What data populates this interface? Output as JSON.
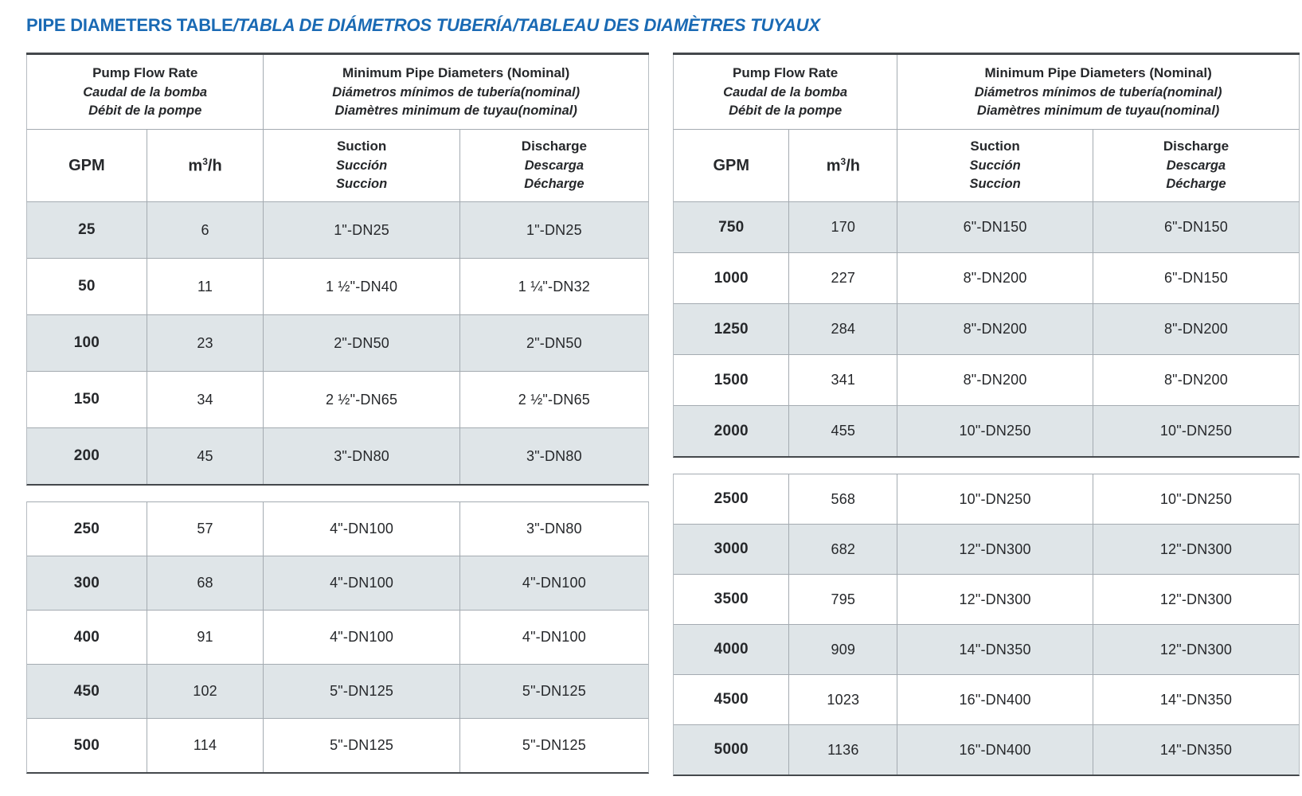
{
  "title": {
    "main": "PIPE DIAMETERS TABLE",
    "translations": "/TABLA DE DIÁMETROS TUBERÍA/TABLEAU DES DIAMÈTRES TUYAUX"
  },
  "colors": {
    "accent": "#1a6ab4",
    "ink": "#26282b",
    "row_shade": "#dfe5e8",
    "line": "#a4abb1",
    "line_dark": "#44484c",
    "edge": "#b6bcc1"
  },
  "header": {
    "flow_en": "Pump Flow Rate",
    "flow_es": "Caudal de la bomba",
    "flow_fr": "Débit de la pompe",
    "diam_en": "Minimum Pipe Diameters (Nominal)",
    "diam_es": "Diámetros mínimos de tubería(nominal)",
    "diam_fr": "Diamètres minimum de tuyau(nominal)",
    "gpm": "GPM",
    "m3h": {
      "pre": "m",
      "sup": "3",
      "post": "/h"
    },
    "suction_en": "Suction",
    "suction_es": "Succión",
    "suction_fr": "Succion",
    "discharge_en": "Discharge",
    "discharge_es": "Descarga",
    "discharge_fr": "Décharge"
  },
  "tables": [
    {
      "sections": [
        {
          "rows": [
            {
              "gpm": "25",
              "m3h": "6",
              "suction": "1\"-DN25",
              "discharge": "1\"-DN25",
              "shaded": true
            },
            {
              "gpm": "50",
              "m3h": "11",
              "suction": "1 ½\"-DN40",
              "discharge": "1 ¼\"-DN32",
              "shaded": false
            },
            {
              "gpm": "100",
              "m3h": "23",
              "suction": "2\"-DN50",
              "discharge": "2\"-DN50",
              "shaded": true
            },
            {
              "gpm": "150",
              "m3h": "34",
              "suction": "2 ½\"-DN65",
              "discharge": "2 ½\"-DN65",
              "shaded": false
            },
            {
              "gpm": "200",
              "m3h": "45",
              "suction": "3\"-DN80",
              "discharge": "3\"-DN80",
              "shaded": true
            }
          ]
        },
        {
          "rows": [
            {
              "gpm": "250",
              "m3h": "57",
              "suction": "4\"-DN100",
              "discharge": "3\"-DN80",
              "shaded": false
            },
            {
              "gpm": "300",
              "m3h": "68",
              "suction": "4\"-DN100",
              "discharge": "4\"-DN100",
              "shaded": true
            },
            {
              "gpm": "400",
              "m3h": "91",
              "suction": "4\"-DN100",
              "discharge": "4\"-DN100",
              "shaded": false
            },
            {
              "gpm": "450",
              "m3h": "102",
              "suction": "5\"-DN125",
              "discharge": "5\"-DN125",
              "shaded": true
            },
            {
              "gpm": "500",
              "m3h": "114",
              "suction": "5\"-DN125",
              "discharge": "5\"-DN125",
              "shaded": false
            }
          ]
        }
      ]
    },
    {
      "sections": [
        {
          "rows": [
            {
              "gpm": "750",
              "m3h": "170",
              "suction": "6\"-DN150",
              "discharge": "6\"-DN150",
              "shaded": true
            },
            {
              "gpm": "1000",
              "m3h": "227",
              "suction": "8\"-DN200",
              "discharge": "6\"-DN150",
              "shaded": false
            },
            {
              "gpm": "1250",
              "m3h": "284",
              "suction": "8\"-DN200",
              "discharge": "8\"-DN200",
              "shaded": true
            },
            {
              "gpm": "1500",
              "m3h": "341",
              "suction": "8\"-DN200",
              "discharge": "8\"-DN200",
              "shaded": false
            },
            {
              "gpm": "2000",
              "m3h": "455",
              "suction": "10\"-DN250",
              "discharge": "10\"-DN250",
              "shaded": true
            }
          ]
        },
        {
          "rows": [
            {
              "gpm": "2500",
              "m3h": "568",
              "suction": "10\"-DN250",
              "discharge": "10\"-DN250",
              "shaded": false
            },
            {
              "gpm": "3000",
              "m3h": "682",
              "suction": "12\"-DN300",
              "discharge": "12\"-DN300",
              "shaded": true
            },
            {
              "gpm": "3500",
              "m3h": "795",
              "suction": "12\"-DN300",
              "discharge": "12\"-DN300",
              "shaded": false
            },
            {
              "gpm": "4000",
              "m3h": "909",
              "suction": "14\"-DN350",
              "discharge": "12\"-DN300",
              "shaded": true
            },
            {
              "gpm": "4500",
              "m3h": "1023",
              "suction": "16\"-DN400",
              "discharge": "14\"-DN350",
              "shaded": false
            },
            {
              "gpm": "5000",
              "m3h": "1136",
              "suction": "16\"-DN400",
              "discharge": "14\"-DN350",
              "shaded": true
            }
          ]
        }
      ]
    }
  ]
}
